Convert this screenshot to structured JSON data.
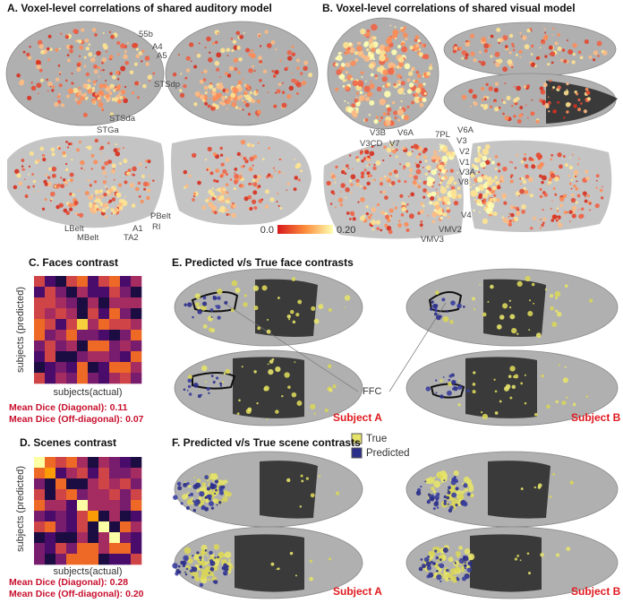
{
  "panels": {
    "A": {
      "title": "A. Voxel-level correlations of shared auditory model",
      "labels": [
        "55b",
        "A4",
        "A5",
        "STSdp",
        "STSda",
        "STGa",
        "PBelt",
        "RI",
        "A1",
        "TA2",
        "LBelt",
        "MBelt"
      ]
    },
    "B": {
      "title": "B. Voxel-level correlations of shared visual model",
      "labels": [
        "V3B",
        "V6A",
        "V3CD",
        "V7",
        "7PL",
        "V6A",
        "V3",
        "V2",
        "V1",
        "V3A",
        "V8",
        "V4",
        "VMV2",
        "VMV3"
      ],
      "colorbar": {
        "min": "0.0",
        "max": "0.20"
      }
    },
    "C": {
      "title": "C. Faces contrast",
      "ylabel": "subjects (predicted)",
      "xlabel": "subjects(actual)",
      "stats": [
        "Mean Dice (Diagonal): 0.11",
        "Mean Dice (Off-diagonal): 0.07"
      ]
    },
    "D": {
      "title": "D. Scenes contrast",
      "ylabel": "subjects (predicted)",
      "xlabel": "subjects(actual)",
      "stats": [
        "Mean Dice (Diagonal): 0.28",
        "Mean Dice (Off-diagonal): 0.20"
      ]
    },
    "E": {
      "title": "E. Predicted v/s True face contrasts",
      "roi": "FFC",
      "subjects": [
        "Subject A",
        "Subject B"
      ]
    },
    "F": {
      "title": "F. Predicted v/s True scene contrasts",
      "legend": [
        "True",
        "Predicted"
      ],
      "subjects": [
        "Subject A",
        "Subject B"
      ]
    }
  }
}
